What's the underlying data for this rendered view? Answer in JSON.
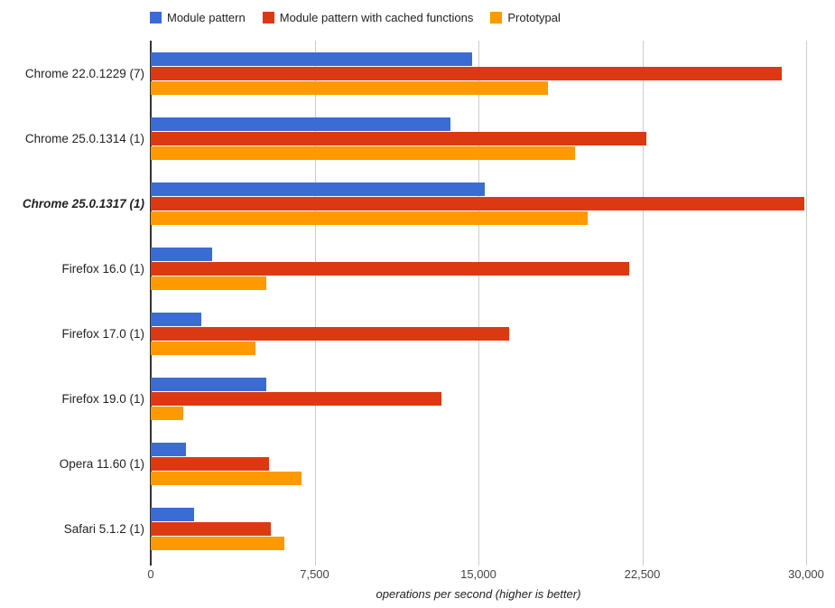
{
  "chart_data": {
    "type": "bar",
    "orientation": "horizontal",
    "title": "",
    "xlabel": "operations per second (higher is better)",
    "ylabel": "",
    "xlim": [
      0,
      30000
    ],
    "grid": true,
    "legend_position": "top",
    "categories": [
      {
        "label": "Chrome 22.0.1229 (7)",
        "emphasized": false
      },
      {
        "label": "Chrome 25.0.1314 (1)",
        "emphasized": false
      },
      {
        "label": "Chrome 25.0.1317 (1)",
        "emphasized": true
      },
      {
        "label": "Firefox 16.0 (1)",
        "emphasized": false
      },
      {
        "label": "Firefox 17.0 (1)",
        "emphasized": false
      },
      {
        "label": "Firefox 19.0 (1)",
        "emphasized": false
      },
      {
        "label": "Opera 11.60 (1)",
        "emphasized": false
      },
      {
        "label": "Safari 5.1.2 (1)",
        "emphasized": false
      }
    ],
    "series": [
      {
        "name": "Module pattern",
        "color": "#3B6CD4",
        "values": [
          14700,
          13700,
          15300,
          2800,
          2300,
          5300,
          1600,
          2000
        ]
      },
      {
        "name": "Module pattern with cached functions",
        "color": "#DC3912",
        "values": [
          28900,
          22700,
          29900,
          21900,
          16400,
          13300,
          5400,
          5500
        ]
      },
      {
        "name": "Prototypal",
        "color": "#FF9900",
        "values": [
          18200,
          19400,
          20000,
          5300,
          4800,
          1500,
          6900,
          6100
        ]
      }
    ],
    "xticks": [
      {
        "value": 0,
        "label": "0"
      },
      {
        "value": 7500,
        "label": "7,500"
      },
      {
        "value": 15000,
        "label": "15,000"
      },
      {
        "value": 22500,
        "label": "22,500"
      },
      {
        "value": 30000,
        "label": "30,000"
      }
    ]
  },
  "colors": {
    "background": "#ffffff",
    "gridline": "#cccccc",
    "axis_line": "#333333",
    "tick_label": "#444444",
    "category_label": "#222222"
  }
}
